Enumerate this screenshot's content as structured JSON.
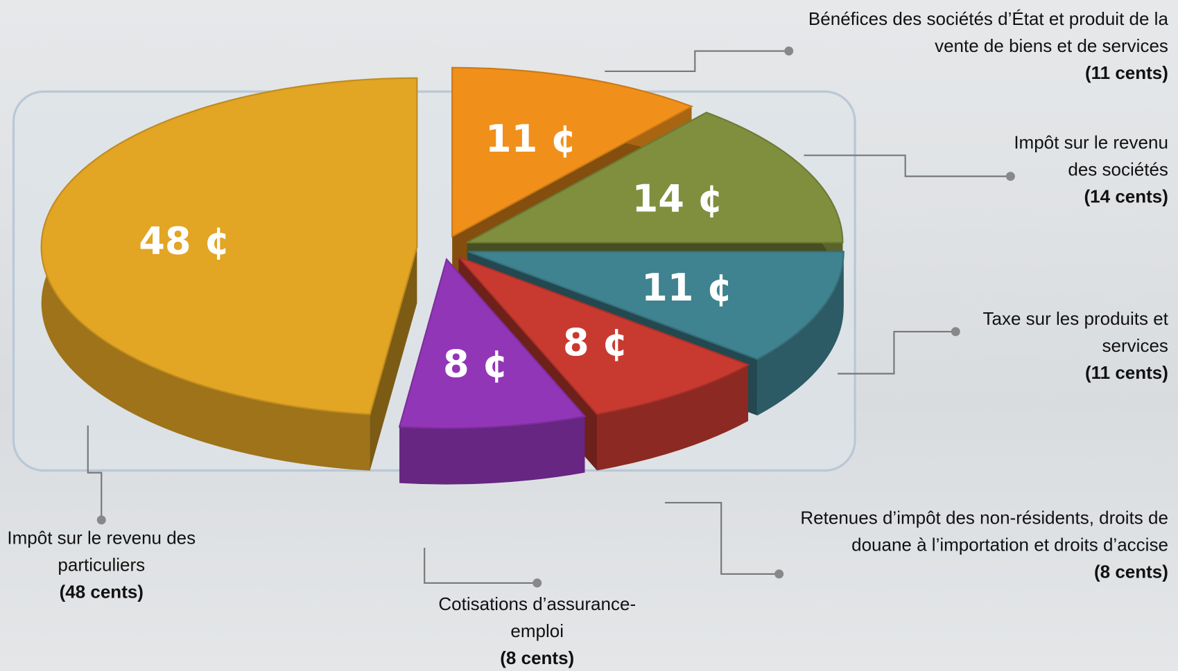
{
  "chart_data": {
    "type": "pie",
    "categories": [
      "Bénéfices des sociétés d’État et produit de la vente de biens et de services",
      "Impôt sur le revenu des sociétés",
      "Taxe sur les produits et services",
      "Retenues d’impôt des non-résidents, droits de douane à l’importation et droits d’accise",
      "Cotisations d’assurance-emploi",
      "Impôt sur le revenu des particuliers"
    ],
    "values": [
      11,
      14,
      11,
      8,
      8,
      48
    ],
    "value_labels": [
      "11 ¢",
      "14 ¢",
      "11 ¢",
      "8 ¢",
      "8 ¢",
      "48 ¢"
    ],
    "amount_labels": [
      "(11 cents)",
      "(14 cents)",
      "(11 cents)",
      "(8 cents)",
      "(8 cents)",
      "(48 cents)"
    ],
    "colors": [
      "#f0901a",
      "#7f8f3e",
      "#3f8290",
      "#c83a30",
      "#9236b8",
      "#e2a524"
    ]
  }
}
